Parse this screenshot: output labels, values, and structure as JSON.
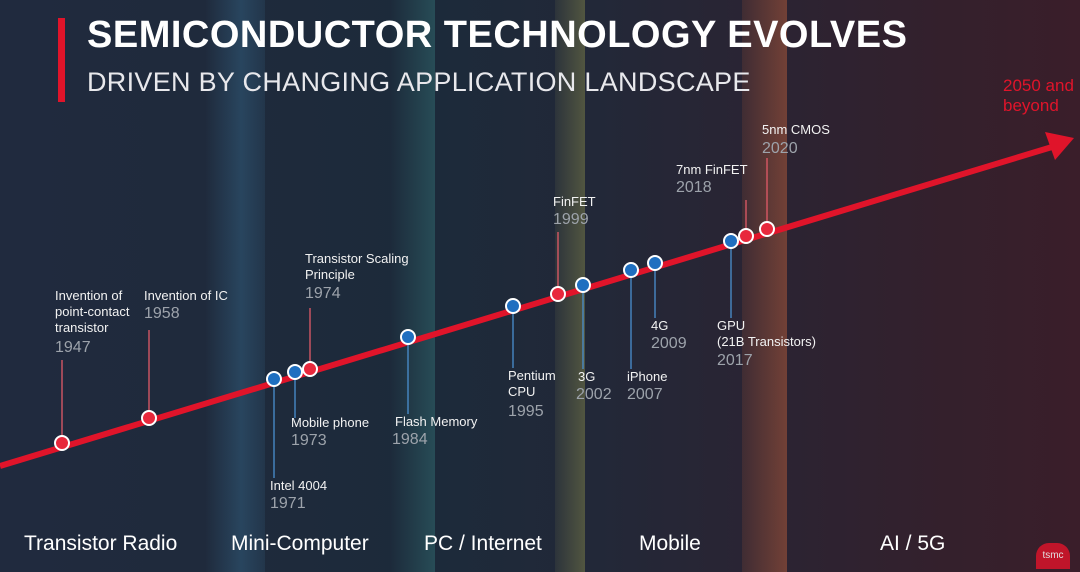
{
  "header": {
    "title": "SEMICONDUCTOR TECHNOLOGY EVOLVES",
    "subtitle": "DRIVEN BY CHANGING APPLICATION LANDSCAPE",
    "future_label": [
      "2050 and",
      "beyond"
    ]
  },
  "colors": {
    "accent_red": "#e0142a",
    "node_red": "#e8283c",
    "node_blue": "#1f6fc0",
    "year_gray": "#9da3ab"
  },
  "eras": [
    "Transistor Radio",
    "Mini-Computer",
    "PC / Internet",
    "Mobile",
    "AI / 5G"
  ],
  "milestones": [
    {
      "id": "point-contact-transistor",
      "label": [
        "Invention of",
        "point-contact",
        "transistor"
      ],
      "year": "1947",
      "color": "red"
    },
    {
      "id": "ic",
      "label": [
        "Invention of IC"
      ],
      "year": "1958",
      "color": "red"
    },
    {
      "id": "intel-4004",
      "label": [
        "Intel 4004"
      ],
      "year": "1971",
      "color": "blue"
    },
    {
      "id": "mobile-phone",
      "label": [
        "Mobile phone"
      ],
      "year": "1973",
      "color": "blue"
    },
    {
      "id": "transistor-scaling",
      "label": [
        "Transistor Scaling",
        "Principle"
      ],
      "year": "1974",
      "color": "red"
    },
    {
      "id": "flash-memory",
      "label": [
        "Flash Memory"
      ],
      "year": "1984",
      "color": "blue"
    },
    {
      "id": "pentium-cpu",
      "label": [
        "Pentium",
        "CPU"
      ],
      "year": "1995",
      "color": "blue"
    },
    {
      "id": "finfet",
      "label": [
        "FinFET"
      ],
      "year": "1999",
      "color": "red"
    },
    {
      "id": "3g",
      "label": [
        "3G"
      ],
      "year": "2002",
      "color": "blue"
    },
    {
      "id": "iphone",
      "label": [
        "iPhone"
      ],
      "year": "2007",
      "color": "blue"
    },
    {
      "id": "4g",
      "label": [
        "4G"
      ],
      "year": "2009",
      "color": "blue"
    },
    {
      "id": "gpu",
      "label": [
        "GPU",
        "(21B Transistors)"
      ],
      "year": "2017",
      "color": "blue"
    },
    {
      "id": "7nm-finfet",
      "label": [
        "7nm FinFET"
      ],
      "year": "2018",
      "color": "red"
    },
    {
      "id": "5nm-cmos",
      "label": [
        "5nm CMOS"
      ],
      "year": "2020",
      "color": "red"
    }
  ],
  "logo_text": "tsmc"
}
